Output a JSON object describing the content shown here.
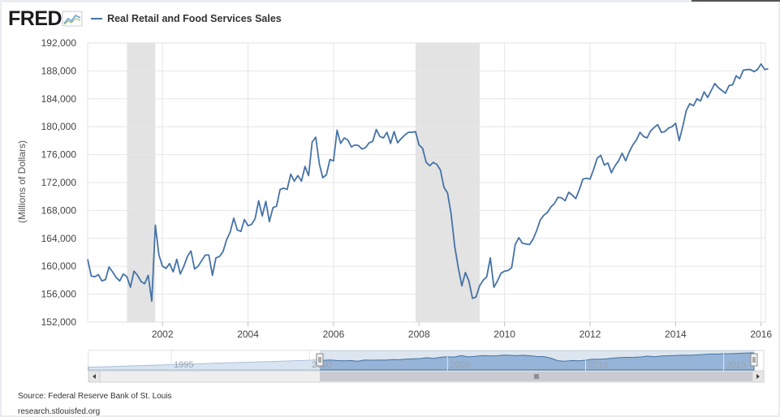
{
  "header": {
    "logo_text": "FRED",
    "logo_icon": "chart-line-icon"
  },
  "footer": {
    "source": "Source: Federal Reserve Bank of St. Louis",
    "url": "research.stlouisfed.org"
  },
  "navigator": {
    "tick_labels": [
      "1995",
      "2000",
      "2005",
      "2010",
      "2015"
    ],
    "selected_start": 2000.25,
    "selected_end": 2016.1
  },
  "colors": {
    "series": "#4572a7",
    "recession": "#e3e3e3",
    "grid": "#e6e6e6"
  },
  "chart_data": {
    "type": "line",
    "title": "",
    "xlabel": "",
    "ylabel": "(Millions of Dollars)",
    "legend_position": "top-left",
    "grid": true,
    "xlim": [
      2000.25,
      2016.1
    ],
    "ylim": [
      152000,
      192000
    ],
    "y_ticks": [
      "192,000",
      "188,000",
      "184,000",
      "180,000",
      "176,000",
      "172,000",
      "168,000",
      "164,000",
      "160,000",
      "156,000",
      "152,000"
    ],
    "x_ticks": [
      "2002",
      "2004",
      "2006",
      "2008",
      "2010",
      "2012",
      "2014",
      "2016"
    ],
    "recessions": [
      {
        "start": 2001.17,
        "end": 2001.83
      },
      {
        "start": 2007.92,
        "end": 2009.42
      }
    ],
    "series": [
      {
        "name": "Real Retail and Food Services Sales",
        "x_start": 2000.25,
        "x_step": 0.083333,
        "values": [
          161000,
          158600,
          158500,
          158800,
          157900,
          158100,
          159900,
          159200,
          158400,
          157900,
          158900,
          158500,
          157000,
          159300,
          158700,
          157800,
          157500,
          158700,
          155000,
          165900,
          161600,
          160000,
          159700,
          160400,
          159200,
          161000,
          158900,
          160000,
          161400,
          162200,
          159600,
          160000,
          160800,
          161600,
          161600,
          158700,
          161200,
          161400,
          162100,
          163800,
          164900,
          166900,
          165200,
          165000,
          166700,
          165800,
          166000,
          166800,
          169400,
          167200,
          169300,
          166400,
          168400,
          168600,
          171000,
          171200,
          171000,
          173200,
          172200,
          173000,
          172200,
          174300,
          173000,
          177800,
          178500,
          174700,
          172700,
          173100,
          175300,
          175100,
          179500,
          177600,
          178400,
          178100,
          177100,
          177400,
          177300,
          176800,
          177000,
          177700,
          177900,
          179600,
          178600,
          178400,
          179200,
          177600,
          179300,
          177700,
          178300,
          178800,
          179200,
          179200,
          179300,
          177400,
          176900,
          174900,
          174400,
          174900,
          174600,
          173800,
          171300,
          170500,
          167500,
          162900,
          159800,
          157200,
          159100,
          157900,
          155400,
          155600,
          157200,
          158000,
          158500,
          161200,
          157000,
          157900,
          159000,
          159300,
          159400,
          159800,
          163100,
          164100,
          163300,
          163200,
          163100,
          163900,
          165100,
          166600,
          167300,
          167700,
          168500,
          169000,
          169900,
          169800,
          169400,
          170600,
          170200,
          169700,
          171000,
          172500,
          172600,
          172500,
          173900,
          175500,
          175900,
          174500,
          174800,
          173400,
          174400,
          175100,
          176200,
          175100,
          176400,
          177400,
          178100,
          179200,
          178600,
          178400,
          179400,
          179900,
          180300,
          179200,
          179300,
          179800,
          180000,
          180500,
          178000,
          180000,
          182300,
          183300,
          183000,
          184000,
          183700,
          185000,
          184200,
          185200,
          186200,
          185600,
          185200,
          184800,
          185900,
          186000,
          187300,
          186900,
          188100,
          188200,
          188200,
          187900,
          188200,
          189000,
          188200,
          188300
        ]
      }
    ]
  }
}
